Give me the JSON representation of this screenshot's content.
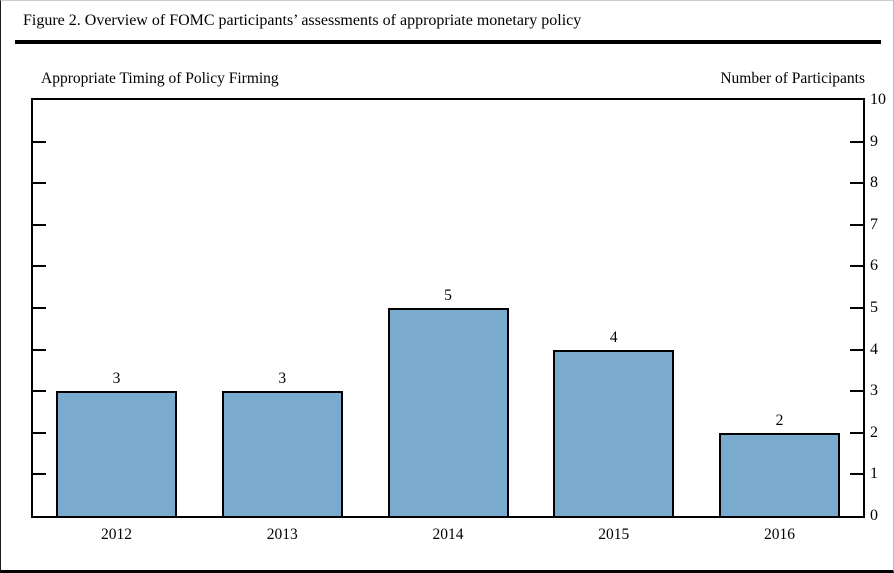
{
  "figure": {
    "title": "Figure 2. Overview of FOMC participants’ assessments of appropriate monetary policy"
  },
  "chart_data": {
    "type": "bar",
    "title": "Figure 2. Overview of FOMC participants’ assessments of appropriate monetary policy",
    "subtitle_left": "Appropriate Timing of Policy Firming",
    "ylabel_right": "Number of Participants",
    "categories": [
      "2012",
      "2013",
      "2014",
      "2015",
      "2016"
    ],
    "values": [
      3,
      3,
      5,
      4,
      2
    ],
    "bar_value_labels": [
      "3",
      "3",
      "5",
      "4",
      "2"
    ],
    "ylim": [
      0,
      10
    ],
    "ytick_interval": 1,
    "ytick_labels": [
      "0",
      "1",
      "2",
      "3",
      "4",
      "5",
      "6",
      "7",
      "8",
      "9",
      "10"
    ],
    "ytick_label_side": "right",
    "grid": false,
    "legend": "none",
    "bar_color": "#7AAACD",
    "bar_border_color": "#000000",
    "axis_color": "#000000"
  }
}
